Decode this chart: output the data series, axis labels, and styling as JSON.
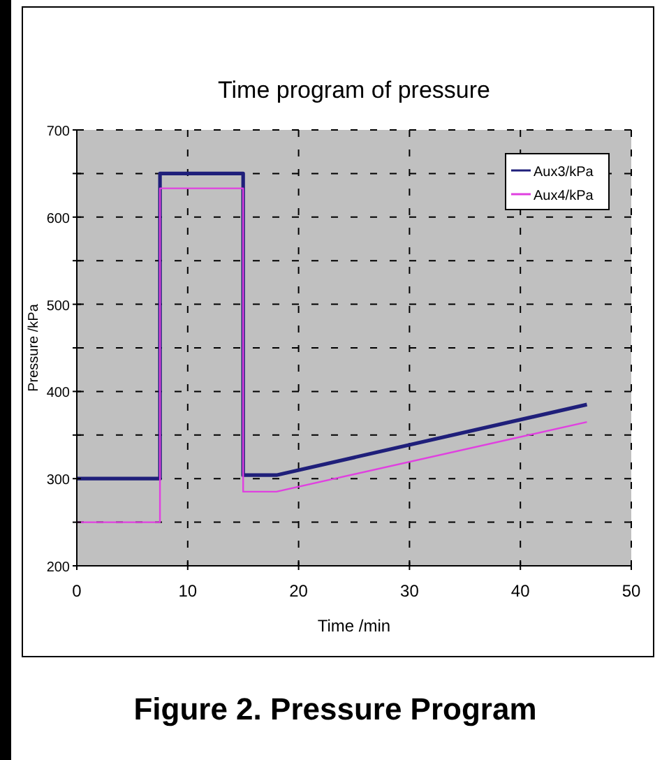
{
  "chart_data": {
    "type": "line",
    "title": "Time program of pressure",
    "xlabel": "Time /min",
    "ylabel": "Pressure /kPa",
    "x": [
      0,
      7.5,
      7.5,
      15,
      15,
      18,
      46
    ],
    "series": [
      {
        "name": "Aux3/kPa",
        "color": "#1f1f7a",
        "values": [
          300,
          300,
          650,
          650,
          304,
          304,
          385
        ]
      },
      {
        "name": "Aux4/kPa",
        "color": "#e040e0",
        "values": [
          250,
          250,
          633,
          633,
          285,
          285,
          365
        ]
      }
    ],
    "xlim": [
      0,
      50
    ],
    "xticks": [
      0,
      10,
      20,
      30,
      40,
      50
    ],
    "ylim": [
      200,
      700
    ],
    "yticks": [
      200,
      {
        "value": 250,
        "label": null
      },
      300,
      {
        "value": 350,
        "label": null
      },
      400,
      {
        "value": 450,
        "label": null
      },
      500,
      {
        "value": 550,
        "label": null
      },
      600,
      {
        "value": 650,
        "label": null
      },
      700
    ],
    "grid": true,
    "legend": "top right",
    "line_style": "solid",
    "marker": "none",
    "annotations": [
      "Figure 2. Pressure Program"
    ]
  }
}
